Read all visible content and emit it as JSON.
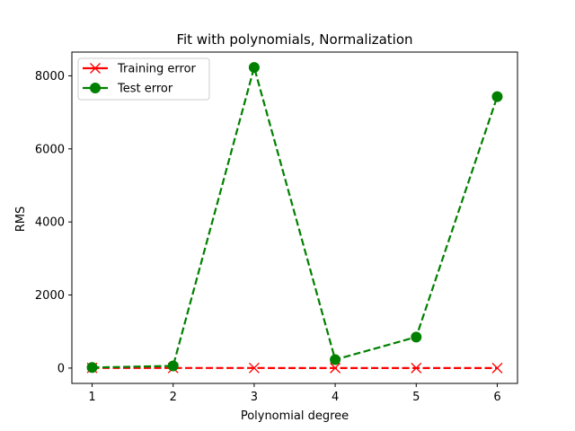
{
  "chart_data": {
    "type": "line",
    "title": "Fit with polynomials, Normalization",
    "xlabel": "Polynomial degree",
    "ylabel": "RMS",
    "x": [
      1,
      2,
      3,
      4,
      5,
      6
    ],
    "xticks": [
      "1",
      "2",
      "3",
      "4",
      "5",
      "6"
    ],
    "yticks": [
      "0",
      "2000",
      "4000",
      "6000",
      "8000"
    ],
    "xlim": [
      0.75,
      6.25
    ],
    "ylim": [
      -420,
      8650
    ],
    "grid": false,
    "legend_position": "upper left",
    "series": [
      {
        "name": "Training error",
        "values": [
          5,
          3,
          2,
          1,
          1,
          1
        ],
        "color": "#ff0000",
        "linestyle": "dashed",
        "marker": "x"
      },
      {
        "name": "Test error",
        "values": [
          15,
          60,
          8230,
          230,
          850,
          7430
        ],
        "color": "#008000",
        "linestyle": "dashed",
        "marker": "circle"
      }
    ]
  }
}
